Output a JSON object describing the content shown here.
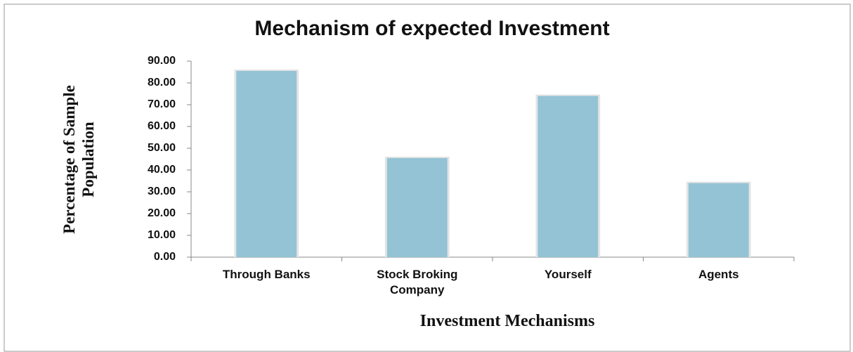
{
  "chart_data": {
    "type": "bar",
    "title": "Mechanism of expected Investment",
    "x_label": "Investment Mechanisms",
    "y_label": "Percentage of Sample Population",
    "categories": [
      "Through Banks",
      "Stock Broking Company",
      "Yourself",
      "Agents"
    ],
    "values": [
      85.5,
      45.5,
      74,
      34
    ],
    "color": "#93c3d5",
    "ylim": [
      0,
      90
    ],
    "yticks": [
      {
        "value": 0,
        "label": "0.00"
      },
      {
        "value": 10,
        "label": "10.00"
      },
      {
        "value": 20,
        "label": "20.00"
      },
      {
        "value": 30,
        "label": "30.00"
      },
      {
        "value": 40,
        "label": "40.00"
      },
      {
        "value": 50,
        "label": "50.00"
      },
      {
        "value": 60,
        "label": "60.00"
      },
      {
        "value": 70,
        "label": "70.00"
      },
      {
        "value": 80,
        "label": "80.00"
      },
      {
        "value": 90,
        "label": "90.00"
      }
    ]
  }
}
